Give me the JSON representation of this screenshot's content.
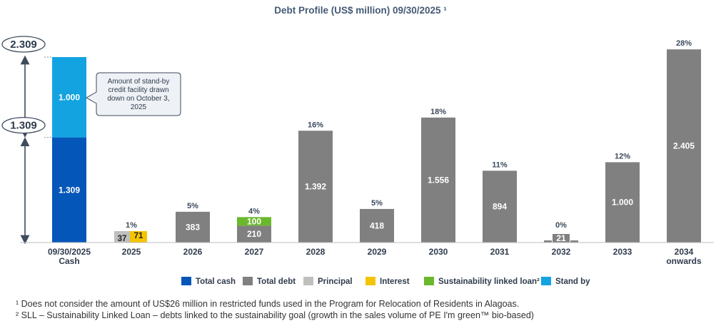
{
  "chart_data": {
    "type": "bar",
    "title": "Debt Profile (US$ million) 09/30/2025 ¹",
    "categories": [
      "09/30/2025\nCash",
      "2025",
      "2026",
      "2027",
      "2028",
      "2029",
      "2030",
      "2031",
      "2032",
      "2033",
      "2034\nonwards"
    ],
    "ylim": [
      0,
      2500
    ],
    "grid": false,
    "legend_position": "bottom",
    "cash": {
      "total": "2.309",
      "total_cash": {
        "value": 1309,
        "label": "1.309"
      },
      "stand_by": {
        "value": 1000,
        "label": "1.000"
      },
      "marker_label": "1.309",
      "annotation": [
        "Amount of stand-by",
        "credit facility drawn",
        "down on October 3,",
        "2025"
      ]
    },
    "series": [
      {
        "name": "Total debt",
        "color": "#808080",
        "values": [
          null,
          null,
          383,
          210,
          1392,
          418,
          1556,
          894,
          21,
          1000,
          2405
        ],
        "labels": [
          "",
          "",
          "383",
          "210",
          "1.392",
          "418",
          "1.556",
          "894",
          "21",
          "1.000",
          "2.405"
        ]
      },
      {
        "name": "Principal",
        "color": "#bfbfbf",
        "values": [
          null,
          37,
          null,
          null,
          null,
          null,
          null,
          null,
          null,
          null,
          null
        ],
        "labels": [
          "",
          "37",
          "",
          "",
          "",
          "",
          "",
          "",
          "",
          "",
          ""
        ]
      },
      {
        "name": "Interest",
        "color": "#f5c400",
        "values": [
          null,
          71,
          null,
          null,
          null,
          null,
          null,
          null,
          null,
          null,
          null
        ],
        "labels": [
          "",
          "71",
          "",
          "",
          "",
          "",
          "",
          "",
          "",
          "",
          ""
        ]
      },
      {
        "name": "Sustainability linked loan²",
        "color": "#6ab82b",
        "values": [
          null,
          null,
          null,
          100,
          null,
          null,
          null,
          null,
          null,
          null,
          null
        ],
        "labels": [
          "",
          "",
          "",
          "100",
          "",
          "",
          "",
          "",
          "",
          "",
          ""
        ]
      }
    ],
    "percentages": [
      "",
      "1%",
      "5%",
      "4%",
      "16%",
      "5%",
      "18%",
      "11%",
      "0%",
      "12%",
      "28%"
    ],
    "legend": [
      {
        "name": "Total cash",
        "color": "#0556b9"
      },
      {
        "name": "Total debt",
        "color": "#808080"
      },
      {
        "name": "Principal",
        "color": "#bfbfbf"
      },
      {
        "name": "Interest",
        "color": "#f5c400"
      },
      {
        "name": "Sustainability linked loan²",
        "color": "#6ab82b"
      },
      {
        "name": "Stand by",
        "color": "#13a3e1"
      }
    ]
  },
  "footnotes": [
    "¹ Does not consider the amount of US$26 million in restricted funds used in the Program for Relocation of Residents in Alagoas.",
    "² SLL – Sustainability Linked Loan – debts linked to the sustainability goal (growth in the sales volume of PE I'm green™ bio-based)"
  ]
}
